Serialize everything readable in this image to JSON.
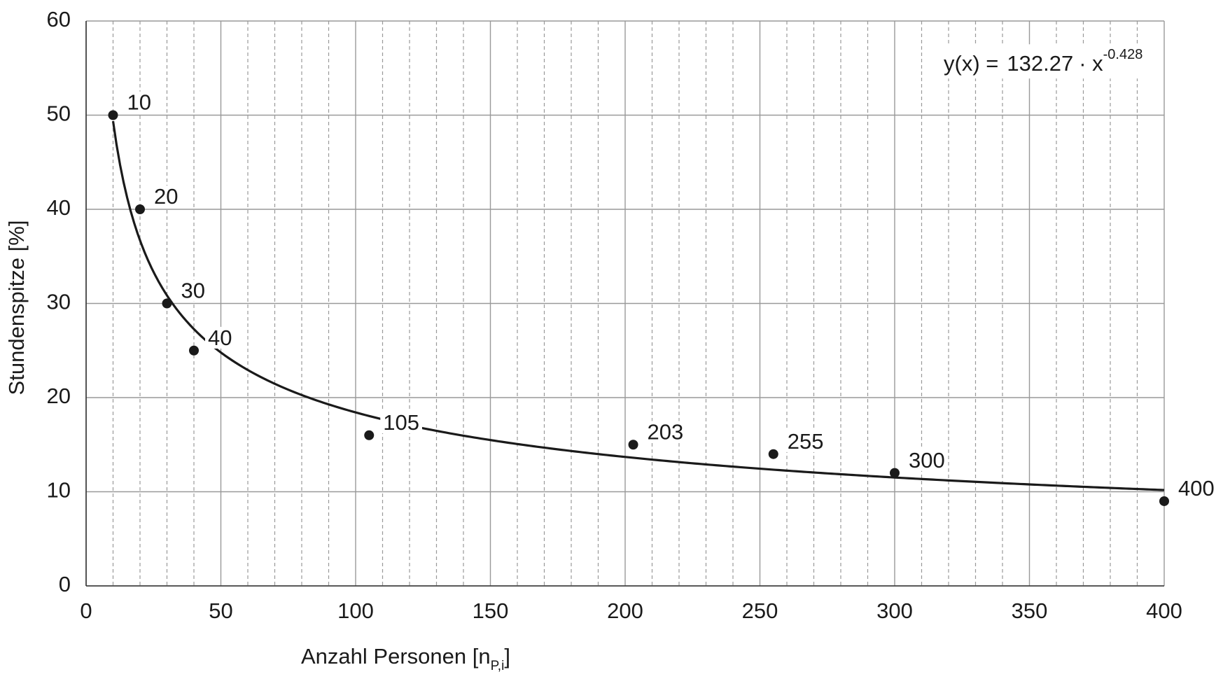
{
  "chart_data": {
    "type": "scatter",
    "x": [
      10,
      20,
      30,
      40,
      105,
      203,
      255,
      300,
      400
    ],
    "values": [
      50,
      40,
      30,
      25,
      16,
      15,
      14,
      12,
      9
    ],
    "color": "#1a1a1a",
    "xlim": [
      0,
      400
    ],
    "xticks": [
      0,
      50,
      100,
      150,
      200,
      250,
      300,
      350,
      400
    ],
    "xminorticks": [
      10,
      20,
      30,
      40,
      60,
      70,
      80,
      90,
      110,
      120,
      130,
      140,
      160,
      170,
      180,
      190,
      210,
      220,
      230,
      240,
      260,
      270,
      280,
      290,
      310,
      320,
      330,
      340,
      360,
      370,
      380,
      390
    ],
    "ylim": [
      0,
      60
    ],
    "yticks": [
      0,
      10,
      20,
      30,
      40,
      50,
      60
    ],
    "grid": true,
    "ylabel": "Stundenspitze  [%]",
    "xlabel": "Anzahl Personen  [n",
    "xlabel_sub": "P,i",
    "xlabel_end": "]",
    "fit": {
      "prefix": "y(x)  =",
      "coefficient": 132.27,
      "times": "· x",
      "exponent": -0.428
    }
  }
}
